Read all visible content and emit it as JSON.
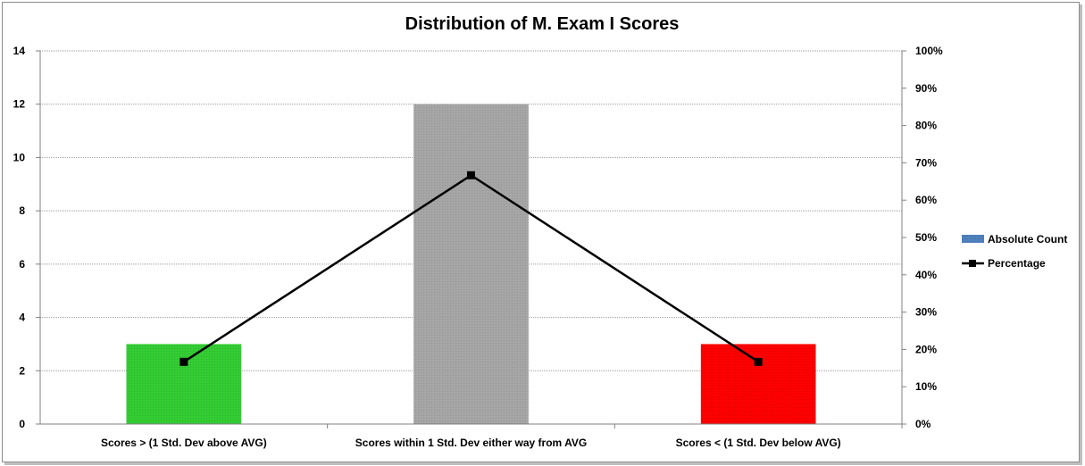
{
  "chart_data": {
    "type": "bar",
    "title": "Distribution of M. Exam I Scores",
    "categories": [
      "Scores > (1 Std. Dev above AVG)",
      "Scores within 1 Std. Dev either way from AVG",
      "Scores < (1 Std. Dev below AVG)"
    ],
    "series": [
      {
        "name": "Absolute Count",
        "type": "bar",
        "axis": "left",
        "values": [
          3,
          12,
          3
        ],
        "colors": [
          "#33cc33",
          "#a6a6a6",
          "#ff0000"
        ],
        "legend_color": "#4f81bd"
      },
      {
        "name": "Percentage",
        "type": "line",
        "axis": "right",
        "values": [
          0.1667,
          0.6667,
          0.1667
        ],
        "color": "#000000",
        "marker": "square"
      }
    ],
    "y_left": {
      "min": 0,
      "max": 14,
      "step": 2,
      "ticks": [
        "0",
        "2",
        "4",
        "6",
        "8",
        "10",
        "12",
        "14"
      ]
    },
    "y_right": {
      "min": 0,
      "max": 1,
      "step": 0.1,
      "ticks": [
        "0%",
        "10%",
        "20%",
        "30%",
        "40%",
        "50%",
        "60%",
        "70%",
        "80%",
        "90%",
        "100%"
      ]
    },
    "grid": true,
    "legend": "right"
  }
}
